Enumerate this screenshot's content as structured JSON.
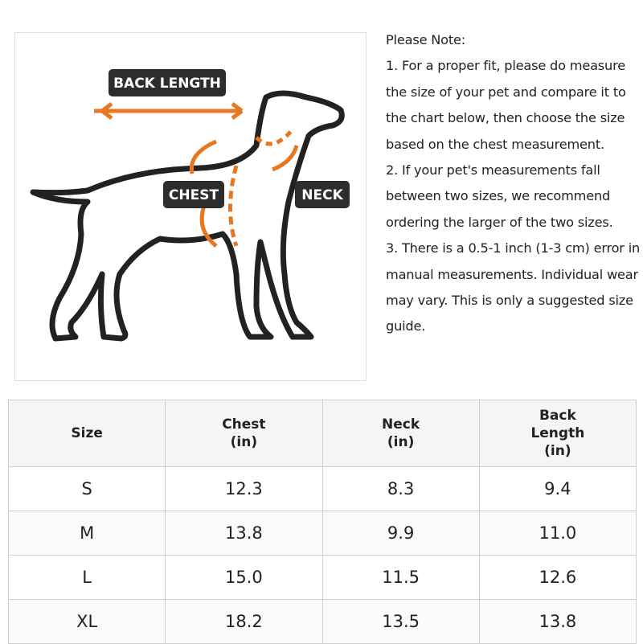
{
  "diagram": {
    "labels": {
      "back_length": "BACK LENGTH",
      "chest": "CHEST",
      "neck": "NECK"
    }
  },
  "note": {
    "title": "Please Note:",
    "items": [
      "1. For a proper fit, please do measure the size of your pet and compare it to the chart below, then choose the size based on the chest measurement.",
      "2. If your pet's measurements fall between two sizes, we recommend ordering the larger of the two sizes.",
      "3. There is a 0.5-1 inch (1-3 cm) error in manual measurements. Individual wear may vary. This is only a suggested size guide."
    ]
  },
  "table": {
    "header": [
      "Size",
      "Chest\n(in)",
      "Neck\n(in)",
      "Back\nLength\n(in)"
    ],
    "rows": [
      [
        "S",
        "12.3",
        "8.3",
        "9.4"
      ],
      [
        "M",
        "13.8",
        "9.9",
        "11.0"
      ],
      [
        "L",
        "15.0",
        "11.5",
        "12.6"
      ],
      [
        "XL",
        "18.2",
        "13.5",
        "13.8"
      ]
    ]
  }
}
